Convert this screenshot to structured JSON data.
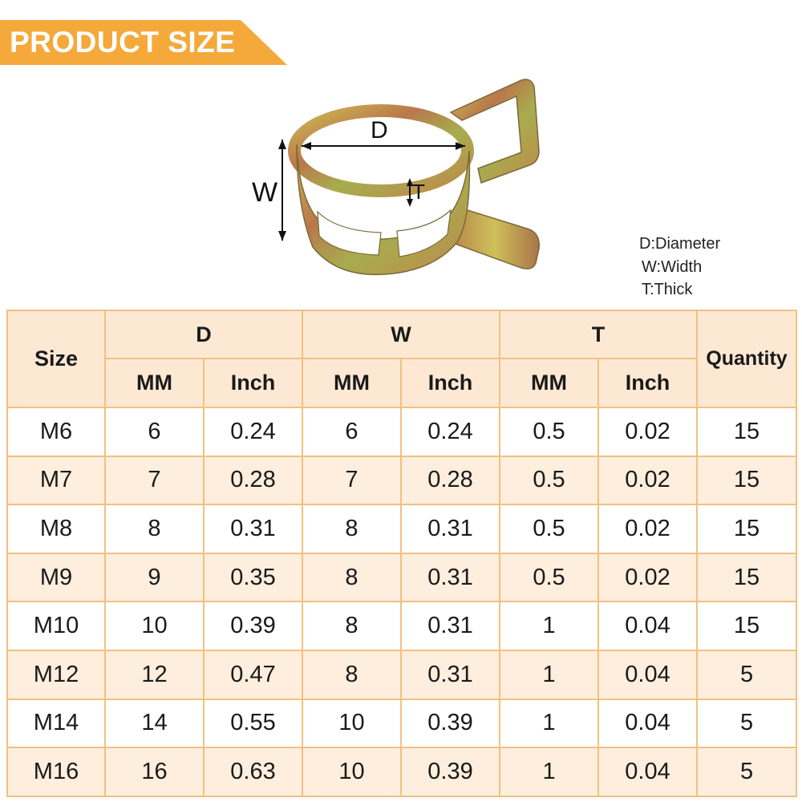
{
  "banner": {
    "title": "PRODUCT SIZE"
  },
  "figure": {
    "label_d": "D",
    "label_w": "W",
    "label_t": "T",
    "clip_colors": {
      "gold": "#c9b34a",
      "copper": "#b8744a",
      "olive": "#9ea84a",
      "outline": "#7a6a3a"
    }
  },
  "legend": {
    "d": "D:Diameter",
    "w": "W:Width",
    "t": "T:Thick"
  },
  "table": {
    "headers": {
      "size": "Size",
      "d": "D",
      "w": "W",
      "t": "T",
      "quantity": "Quantity",
      "d_mm": "MM",
      "d_inch": "Inch",
      "w_mm": "MM",
      "w_inch": "Inch",
      "t_mm": "MM",
      "t_inch": "Inch"
    },
    "rows": [
      {
        "size": "M6",
        "d_mm": "6",
        "d_inch": "0.24",
        "w_mm": "6",
        "w_inch": "0.24",
        "t_mm": "0.5",
        "t_inch": "0.02",
        "qty": "15"
      },
      {
        "size": "M7",
        "d_mm": "7",
        "d_inch": "0.28",
        "w_mm": "7",
        "w_inch": "0.28",
        "t_mm": "0.5",
        "t_inch": "0.02",
        "qty": "15"
      },
      {
        "size": "M8",
        "d_mm": "8",
        "d_inch": "0.31",
        "w_mm": "8",
        "w_inch": "0.31",
        "t_mm": "0.5",
        "t_inch": "0.02",
        "qty": "15"
      },
      {
        "size": "M9",
        "d_mm": "9",
        "d_inch": "0.35",
        "w_mm": "8",
        "w_inch": "0.31",
        "t_mm": "0.5",
        "t_inch": "0.02",
        "qty": "15"
      },
      {
        "size": "M10",
        "d_mm": "10",
        "d_inch": "0.39",
        "w_mm": "8",
        "w_inch": "0.31",
        "t_mm": "1",
        "t_inch": "0.04",
        "qty": "15"
      },
      {
        "size": "M12",
        "d_mm": "12",
        "d_inch": "0.47",
        "w_mm": "8",
        "w_inch": "0.31",
        "t_mm": "1",
        "t_inch": "0.04",
        "qty": "5"
      },
      {
        "size": "M14",
        "d_mm": "14",
        "d_inch": "0.55",
        "w_mm": "10",
        "w_inch": "0.39",
        "t_mm": "1",
        "t_inch": "0.04",
        "qty": "5"
      },
      {
        "size": "M16",
        "d_mm": "16",
        "d_inch": "0.63",
        "w_mm": "10",
        "w_inch": "0.39",
        "t_mm": "1",
        "t_inch": "0.04",
        "qty": "5"
      }
    ]
  }
}
